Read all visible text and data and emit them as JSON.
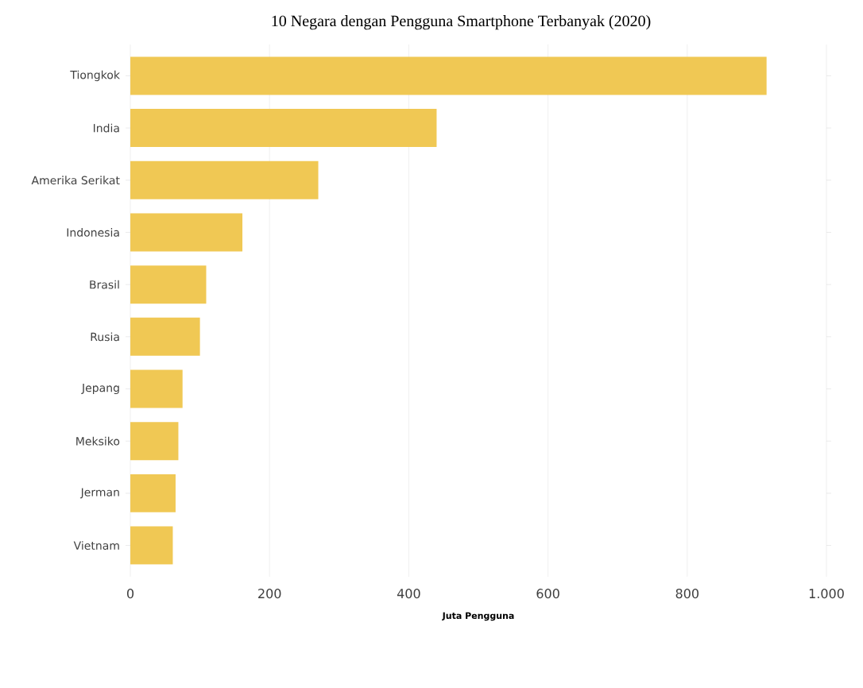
{
  "chart_data": {
    "type": "bar",
    "orientation": "horizontal",
    "title": "10 Negara dengan Pengguna Smartphone Terbanyak  (2020)",
    "xlabel": "Juta Pengguna",
    "categories": [
      "Tiongkok",
      "India",
      "Amerika Serikat",
      "Indonesia",
      "Brasil",
      "Rusia",
      "Jepang",
      "Meksiko",
      "Jerman",
      "Vietnam"
    ],
    "values": [
      914,
      440,
      270,
      161,
      109,
      100,
      75,
      69,
      65,
      61
    ],
    "color": "#f0c854",
    "xlim": [
      0,
      1000
    ],
    "xticks": [
      0,
      200,
      400,
      600,
      800,
      {
        "value": 1000,
        "label": "1.000"
      }
    ],
    "grid": "x"
  }
}
